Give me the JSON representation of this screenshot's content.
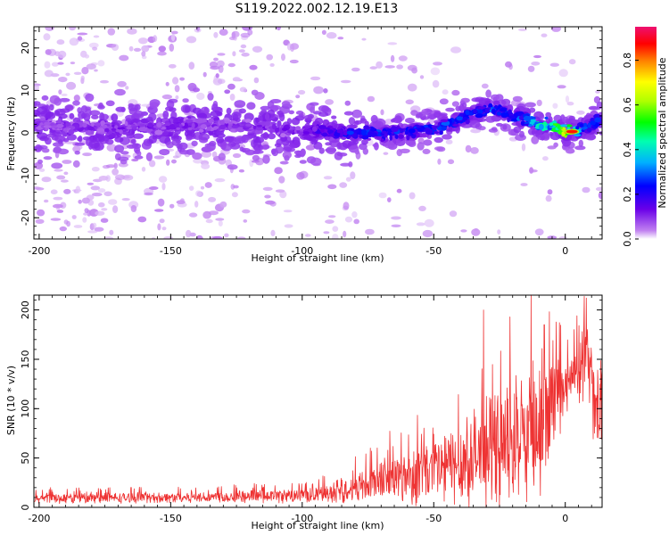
{
  "figure": {
    "title": "S119.2022.002.12.19.E13"
  },
  "chart_data": [
    {
      "type": "heatmap",
      "title": "S119.2022.002.12.19.E13",
      "xlabel": "Height of straight line (km)",
      "ylabel": "Frequency (Hz)",
      "xlim": [
        -202,
        14
      ],
      "ylim": [
        -25,
        25
      ],
      "xticks": [
        -200,
        -150,
        -100,
        -50,
        0
      ],
      "xtick_labels": [
        "-200",
        "-150",
        "-100",
        "-50",
        "0"
      ],
      "yticks": [
        -20,
        -10,
        0,
        10,
        20
      ],
      "ytick_labels": [
        "-20",
        "-10",
        "0",
        "10",
        "20"
      ],
      "colorbar": {
        "label": "Normalized spectral amplitude",
        "range": [
          0,
          0.95
        ],
        "ticks": [
          0.0,
          0.2,
          0.4,
          0.6,
          0.8
        ],
        "tick_labels": [
          "0.0",
          "0.2",
          "0.4",
          "0.6",
          "0.8"
        ],
        "colormap": "rainbow (white at 0, purple → blue → cyan → green → yellow → red → magenta at top)"
      },
      "ridge": {
        "description": "centre frequency of the spectral ridge versus height",
        "x": [
          -200,
          -180,
          -160,
          -140,
          -120,
          -100,
          -85,
          -70,
          -60,
          -50,
          -45,
          -40,
          -35,
          -30,
          -25,
          -20,
          -15,
          -10,
          -5,
          0,
          5,
          10,
          13
        ],
        "y": [
          2,
          1,
          1,
          2,
          1.5,
          0.5,
          0,
          0,
          0.5,
          1,
          2,
          3,
          5,
          5.5,
          5,
          4,
          3,
          2,
          1.5,
          0.5,
          0.5,
          2,
          3
        ],
        "peak_amplitude": [
          0.12,
          0.12,
          0.13,
          0.12,
          0.12,
          0.14,
          0.25,
          0.3,
          0.3,
          0.3,
          0.32,
          0.3,
          0.3,
          0.32,
          0.32,
          0.3,
          0.35,
          0.5,
          0.55,
          0.9,
          0.45,
          0.25,
          0.3
        ]
      }
    },
    {
      "type": "line",
      "title": "",
      "xlabel": "Height of straight line (km)",
      "ylabel": "SNR (10 * v/v)",
      "xlim": [
        -202,
        14
      ],
      "ylim": [
        0,
        215
      ],
      "xticks": [
        -200,
        -150,
        -100,
        -50,
        0
      ],
      "xtick_labels": [
        "-200",
        "-150",
        "-100",
        "-50",
        "0"
      ],
      "yticks": [
        0,
        50,
        100,
        150,
        200
      ],
      "ytick_labels": [
        "0",
        "50",
        "100",
        "150",
        "200"
      ],
      "series": [
        {
          "color": "#ee3333",
          "envelope_x": [
            -202,
            -150,
            -120,
            -100,
            -90,
            -80,
            -70,
            -60,
            -50,
            -40,
            -30,
            -20,
            -10,
            -5,
            0,
            5,
            8,
            10,
            12,
            14
          ],
          "envelope_mean": [
            9,
            10,
            11,
            12,
            14,
            20,
            28,
            32,
            38,
            45,
            55,
            62,
            70,
            100,
            120,
            135,
            150,
            120,
            95,
            110
          ],
          "envelope_spread": [
            5,
            5,
            6,
            7,
            9,
            15,
            20,
            28,
            35,
            40,
            50,
            55,
            60,
            45,
            30,
            30,
            35,
            40,
            40,
            40
          ],
          "peaks": [
            {
              "x": -31,
              "y": 200
            },
            {
              "x": -21,
              "y": 193
            },
            {
              "x": -13,
              "y": 215
            },
            {
              "x": -8,
              "y": 185
            },
            {
              "x": 8,
              "y": 212
            }
          ]
        }
      ]
    }
  ]
}
